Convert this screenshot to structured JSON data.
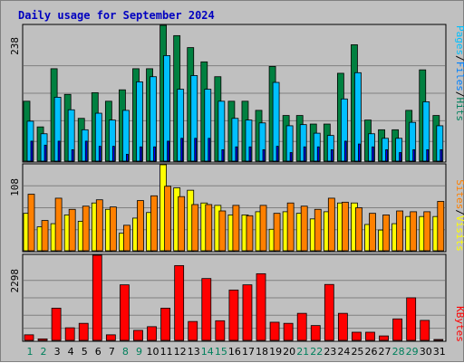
{
  "title": "Daily usage for September 2024",
  "colors": {
    "hits": "#008040",
    "files": "#00c0ff",
    "pages": "#0000ff",
    "visits": "#ffff00",
    "sites": "#ff8000",
    "kbytes": "#ff0000",
    "weekend_day": "#00805c",
    "weekday_day": "#000000",
    "background": "#c0c0c0",
    "panel": "#c0c0c0",
    "title": "#0000c0"
  },
  "legend": {
    "top": [
      {
        "label": "Pages",
        "color": "#00c0ff"
      },
      {
        "sep": "/"
      },
      {
        "label": "Files",
        "color": "#0080ff"
      },
      {
        "sep": "/"
      },
      {
        "label": "Hits",
        "color": "#00805c"
      }
    ],
    "middle": [
      {
        "label": "Sites",
        "color": "#ff8000"
      },
      {
        "sep": "/"
      },
      {
        "label": "Visits",
        "color": "#ffff00"
      }
    ],
    "bottom": [
      {
        "label": "KBytes",
        "color": "#ff0000"
      }
    ]
  },
  "chart_data": [
    {
      "type": "bar",
      "name": "hits_files_pages",
      "ymax_label": "238",
      "ylim": [
        0,
        238
      ],
      "categories": [
        "1",
        "2",
        "3",
        "4",
        "5",
        "6",
        "7",
        "8",
        "9",
        "10",
        "11",
        "12",
        "13",
        "14",
        "15",
        "16",
        "17",
        "18",
        "19",
        "20",
        "21",
        "22",
        "23",
        "24",
        "25",
        "26",
        "27",
        "28",
        "29",
        "30",
        "31"
      ],
      "series": [
        {
          "name": "Hits",
          "values": [
            105,
            60,
            162,
            117,
            75,
            120,
            105,
            125,
            162,
            162,
            238,
            220,
            199,
            174,
            148,
            105,
            105,
            89,
            166,
            80,
            80,
            65,
            65,
            154,
            204,
            72,
            55,
            55,
            89,
            160,
            80
          ]
        },
        {
          "name": "Files",
          "values": [
            70,
            48,
            112,
            90,
            55,
            84,
            72,
            89,
            139,
            148,
            185,
            126,
            150,
            126,
            105,
            75,
            72,
            67,
            138,
            62,
            64,
            49,
            45,
            109,
            155,
            48,
            40,
            40,
            68,
            104,
            62
          ]
        },
        {
          "name": "Pages",
          "values": [
            35,
            28,
            35,
            20,
            35,
            26,
            26,
            12,
            25,
            25,
            35,
            40,
            40,
            40,
            20,
            25,
            25,
            20,
            26,
            15,
            25,
            25,
            20,
            35,
            30,
            25,
            20,
            15,
            20,
            20,
            20
          ]
        }
      ]
    },
    {
      "type": "bar",
      "name": "visits_sites",
      "ymax_label": "108",
      "ylim": [
        0,
        108
      ],
      "categories": [
        "1",
        "2",
        "3",
        "4",
        "5",
        "6",
        "7",
        "8",
        "9",
        "10",
        "11",
        "12",
        "13",
        "14",
        "15",
        "16",
        "17",
        "18",
        "19",
        "20",
        "21",
        "22",
        "23",
        "24",
        "25",
        "26",
        "27",
        "28",
        "29",
        "30",
        "31"
      ],
      "series": [
        {
          "name": "Visits",
          "values": [
            47,
            30,
            34,
            45,
            37,
            60,
            52,
            22,
            41,
            48,
            108,
            79,
            76,
            60,
            57,
            45,
            45,
            49,
            27,
            49,
            47,
            40,
            49,
            60,
            60,
            33,
            26,
            34,
            43,
            43,
            43
          ]
        },
        {
          "name": "Sites",
          "values": [
            71,
            38,
            66,
            52,
            56,
            64,
            55,
            32,
            63,
            69,
            81,
            68,
            58,
            58,
            50,
            57,
            44,
            57,
            47,
            60,
            56,
            52,
            66,
            61,
            54,
            47,
            45,
            50,
            49,
            49,
            62
          ]
        }
      ]
    },
    {
      "type": "bar",
      "name": "kbytes",
      "ymax_label": "2298",
      "ylim": [
        0,
        2298
      ],
      "categories": [
        "1",
        "2",
        "3",
        "4",
        "5",
        "6",
        "7",
        "8",
        "9",
        "10",
        "11",
        "12",
        "13",
        "14",
        "15",
        "16",
        "17",
        "18",
        "19",
        "20",
        "21",
        "22",
        "23",
        "24",
        "25",
        "26",
        "27",
        "28",
        "29",
        "30",
        "31"
      ],
      "series": [
        {
          "name": "KBytes",
          "values": [
            150,
            40,
            870,
            340,
            460,
            2298,
            150,
            1500,
            270,
            370,
            870,
            2020,
            510,
            1670,
            530,
            1360,
            1500,
            1800,
            490,
            460,
            730,
            400,
            1510,
            730,
            220,
            220,
            120,
            580,
            1150,
            540,
            0
          ]
        }
      ]
    }
  ],
  "day_colors": [
    "weekend",
    "weekend",
    "weekday",
    "weekday",
    "weekday",
    "weekday",
    "weekday",
    "weekend",
    "weekend",
    "weekday",
    "weekday",
    "weekday",
    "weekday",
    "weekend",
    "weekend",
    "weekday",
    "weekday",
    "weekday",
    "weekday",
    "weekday",
    "weekend",
    "weekend",
    "weekday",
    "weekday",
    "weekday",
    "weekday",
    "weekday",
    "weekend",
    "weekend",
    "weekday",
    "weekday"
  ]
}
